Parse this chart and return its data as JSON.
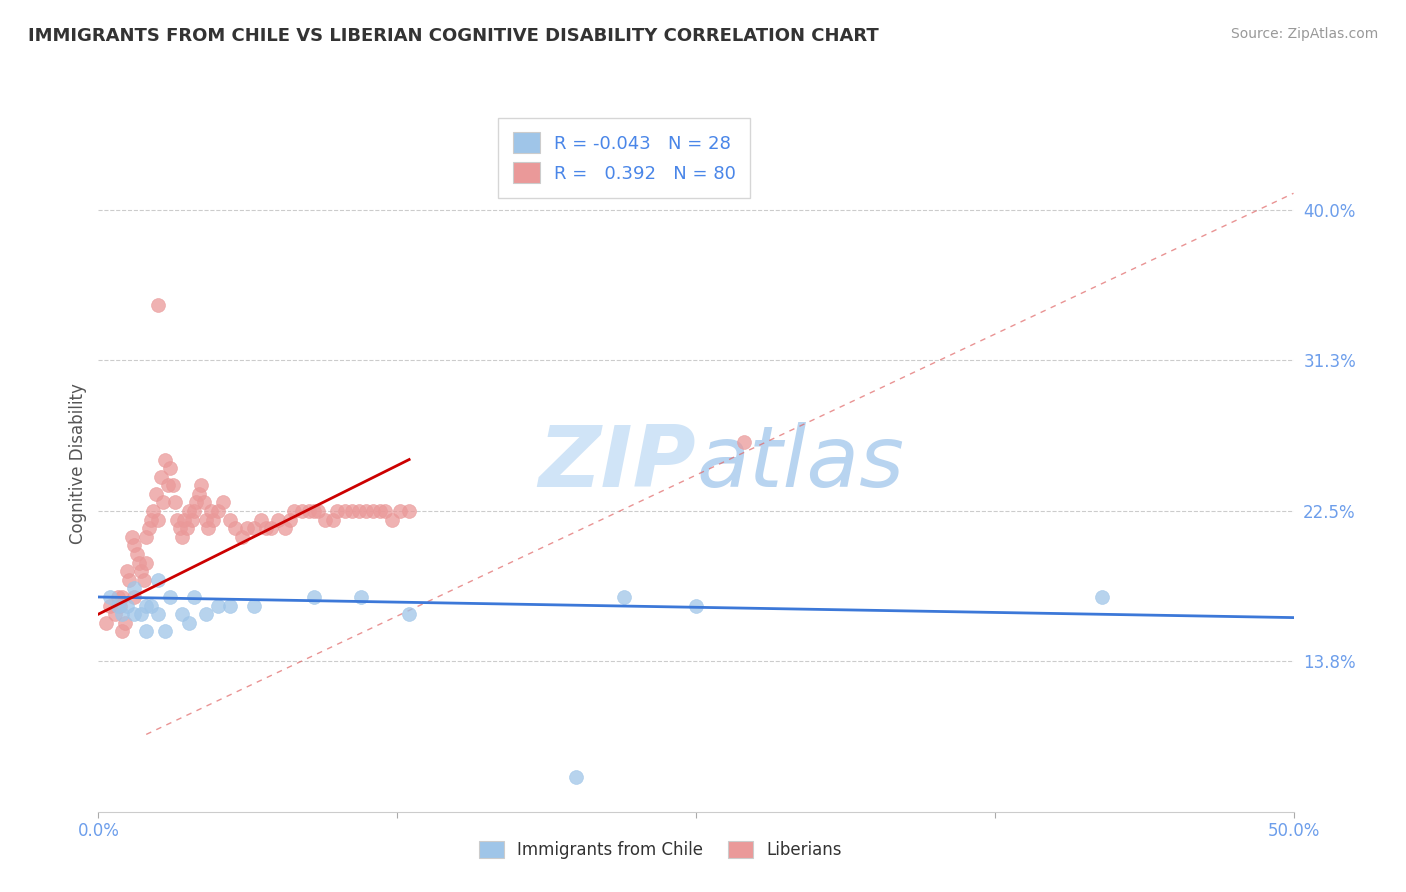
{
  "title": "IMMIGRANTS FROM CHILE VS LIBERIAN COGNITIVE DISABILITY CORRELATION CHART",
  "source": "Source: ZipAtlas.com",
  "ylabel": "Cognitive Disability",
  "xlim": [
    0.0,
    0.5
  ],
  "ylim": [
    0.05,
    0.455
  ],
  "yticks": [
    0.138,
    0.225,
    0.313,
    0.4
  ],
  "ytick_labels": [
    "13.8%",
    "22.5%",
    "31.3%",
    "40.0%"
  ],
  "xticks": [
    0.0,
    0.125,
    0.25,
    0.375,
    0.5
  ],
  "xtick_labels": [
    "0.0%",
    "",
    "",
    "",
    "50.0%"
  ],
  "legend_R_chile": "-0.043",
  "legend_N_chile": "28",
  "legend_R_liberia": "0.392",
  "legend_N_liberia": "80",
  "blue_color": "#9fc5e8",
  "pink_color": "#ea9999",
  "blue_line_color": "#3c78d8",
  "pink_line_color": "#cc0000",
  "diag_line_color": "#e06666",
  "axis_label_color": "#6d9eeb",
  "legend_text_color": "#4a86e8",
  "watermark_color": "#d0e4f7",
  "blue_scatter_x": [
    0.005,
    0.008,
    0.01,
    0.012,
    0.015,
    0.015,
    0.018,
    0.02,
    0.02,
    0.022,
    0.025,
    0.025,
    0.028,
    0.03,
    0.035,
    0.038,
    0.04,
    0.045,
    0.05,
    0.055,
    0.065,
    0.09,
    0.11,
    0.13,
    0.22,
    0.25,
    0.42,
    0.2
  ],
  "blue_scatter_y": [
    0.175,
    0.17,
    0.165,
    0.17,
    0.165,
    0.18,
    0.165,
    0.17,
    0.155,
    0.17,
    0.165,
    0.185,
    0.155,
    0.175,
    0.165,
    0.16,
    0.175,
    0.165,
    0.17,
    0.17,
    0.17,
    0.175,
    0.175,
    0.165,
    0.175,
    0.17,
    0.175,
    0.07
  ],
  "pink_scatter_x": [
    0.003,
    0.005,
    0.007,
    0.008,
    0.009,
    0.01,
    0.01,
    0.011,
    0.012,
    0.013,
    0.014,
    0.015,
    0.015,
    0.016,
    0.017,
    0.018,
    0.019,
    0.02,
    0.02,
    0.021,
    0.022,
    0.023,
    0.024,
    0.025,
    0.026,
    0.027,
    0.028,
    0.029,
    0.03,
    0.031,
    0.032,
    0.033,
    0.034,
    0.035,
    0.036,
    0.037,
    0.038,
    0.039,
    0.04,
    0.041,
    0.042,
    0.043,
    0.044,
    0.045,
    0.046,
    0.047,
    0.048,
    0.05,
    0.052,
    0.055,
    0.057,
    0.06,
    0.062,
    0.065,
    0.068,
    0.07,
    0.072,
    0.075,
    0.078,
    0.08,
    0.082,
    0.085,
    0.088,
    0.09,
    0.092,
    0.095,
    0.098,
    0.1,
    0.103,
    0.106,
    0.109,
    0.112,
    0.115,
    0.118,
    0.12,
    0.123,
    0.126,
    0.13,
    0.025,
    0.27
  ],
  "pink_scatter_y": [
    0.16,
    0.17,
    0.165,
    0.175,
    0.17,
    0.155,
    0.175,
    0.16,
    0.19,
    0.185,
    0.21,
    0.175,
    0.205,
    0.2,
    0.195,
    0.19,
    0.185,
    0.195,
    0.21,
    0.215,
    0.22,
    0.225,
    0.235,
    0.22,
    0.245,
    0.23,
    0.255,
    0.24,
    0.25,
    0.24,
    0.23,
    0.22,
    0.215,
    0.21,
    0.22,
    0.215,
    0.225,
    0.22,
    0.225,
    0.23,
    0.235,
    0.24,
    0.23,
    0.22,
    0.215,
    0.225,
    0.22,
    0.225,
    0.23,
    0.22,
    0.215,
    0.21,
    0.215,
    0.215,
    0.22,
    0.215,
    0.215,
    0.22,
    0.215,
    0.22,
    0.225,
    0.225,
    0.225,
    0.225,
    0.225,
    0.22,
    0.22,
    0.225,
    0.225,
    0.225,
    0.225,
    0.225,
    0.225,
    0.225,
    0.225,
    0.22,
    0.225,
    0.225,
    0.345,
    0.265
  ]
}
